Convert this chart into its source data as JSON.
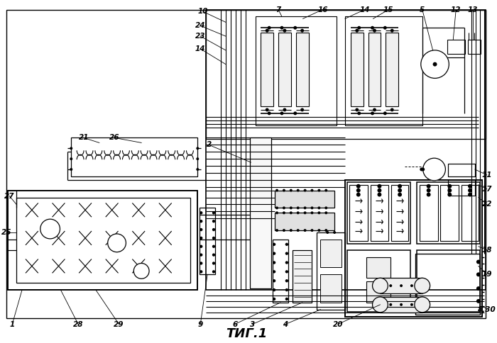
{
  "title": "ΤИГ.1",
  "bg_color": "#ffffff",
  "line_color": "#000000",
  "fig_width": 7.0,
  "fig_height": 4.84,
  "dpi": 100
}
